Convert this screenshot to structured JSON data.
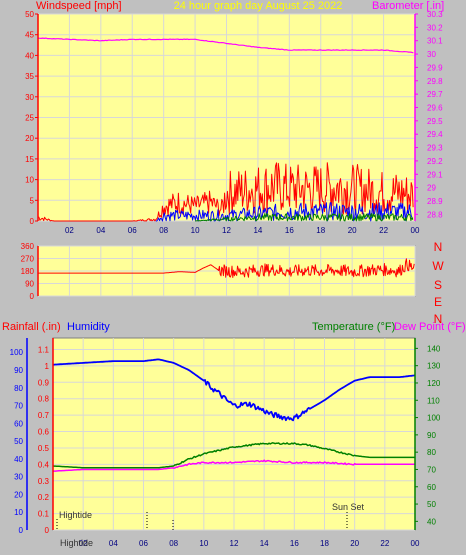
{
  "header": {
    "left_label": "Windspeed [mph]",
    "center_label": "24 hour graph day   August 25 2022",
    "right_label": "Barometer [.in]"
  },
  "lower_header": {
    "rainfall_label": "Rainfall (.in)",
    "humidity_label": "Humidity",
    "temperature_label": "Temperature (°F)",
    "dewpoint_label": "Dew Point (°F)"
  },
  "compass": [
    "N",
    "W",
    "S",
    "E",
    "N"
  ],
  "annotations": {
    "hightide_top": "Hightide",
    "hightide_bottom": "Hightide",
    "sunset": "Sun Set"
  },
  "colors": {
    "plot_bg": "#ffff99",
    "grid": "#d8d8d8",
    "wind": "#ff0000",
    "barometer": "#ff00ff",
    "blue": "#0000ff",
    "green": "#008000",
    "axis_red": "#ff0000",
    "axis_blue": "#0000ff",
    "axis_green": "#008000"
  },
  "chart_data": [
    {
      "type": "line",
      "title": "24 hour graph day   August 25 2022",
      "xlabel": "",
      "ylabel": "Windspeed [mph]",
      "y2label": "Barometer [.in]",
      "x_ticks": [
        "02",
        "04",
        "06",
        "08",
        "10",
        "12",
        "14",
        "16",
        "18",
        "20",
        "22",
        "00"
      ],
      "xlim": [
        0,
        24
      ],
      "y_ticks": [
        "0",
        "5",
        "10",
        "15",
        "20",
        "25",
        "30",
        "35",
        "40",
        "45",
        "50"
      ],
      "ylim": [
        0,
        50
      ],
      "y2_ticks": [
        "28.8",
        "28.9",
        "29",
        "29.1",
        "29.2",
        "29.3",
        "29.4",
        "29.5",
        "29.6",
        "29.7",
        "29.8",
        "29.9",
        "30",
        "30.1",
        "30.2",
        "30.3"
      ],
      "y2lim": [
        28.75,
        30.3
      ],
      "series": [
        {
          "color": "#ff0000",
          "axis": "left",
          "x": [
            0,
            0.5,
            1,
            4,
            6,
            7.5,
            8,
            9,
            10,
            11,
            11.7,
            12,
            13,
            14,
            15,
            16,
            17,
            18,
            19,
            20,
            21,
            22,
            23,
            23.9
          ],
          "values": [
            1,
            0.5,
            0,
            0,
            0,
            0.5,
            4,
            5,
            4,
            5,
            3,
            7,
            7.5,
            8,
            8.5,
            8,
            8,
            8,
            8.5,
            8,
            7.5,
            7,
            7,
            6.5
          ]
        },
        {
          "color": "#0000ff",
          "axis": "left",
          "x": [
            7.5,
            8,
            10,
            12,
            14,
            16,
            18,
            20,
            22,
            23.9
          ],
          "values": [
            0,
            1.5,
            1.5,
            1.5,
            2,
            2.5,
            2.5,
            2.5,
            2.5,
            2.5
          ]
        },
        {
          "color": "#008000",
          "axis": "left",
          "x": [
            10,
            12,
            14,
            16,
            18,
            20,
            22,
            23.9
          ],
          "values": [
            0,
            0.5,
            1,
            1,
            1,
            1,
            1,
            1
          ]
        },
        {
          "color": "#ff00ff",
          "axis": "right",
          "x": [
            0,
            2,
            4,
            6,
            8,
            10,
            12,
            14,
            16,
            18,
            20,
            22,
            23,
            24
          ],
          "values": [
            30.12,
            30.11,
            30.1,
            30.11,
            30.11,
            30.11,
            30.08,
            30.05,
            30.03,
            30.03,
            30.03,
            30.03,
            30.02,
            30.01
          ]
        }
      ]
    },
    {
      "type": "line",
      "title": "",
      "ylabel": "",
      "y2label": "",
      "x_ticks": [],
      "xlim": [
        0,
        24
      ],
      "y_ticks": [
        "0",
        "90",
        "180",
        "270",
        "360"
      ],
      "ylim": [
        0,
        360
      ],
      "series": [
        {
          "color": "#ff0000",
          "x": [
            0,
            2,
            4,
            6,
            8,
            9,
            10,
            10.5,
            11,
            11.5,
            12,
            13,
            14,
            15,
            16,
            17,
            18,
            19,
            20,
            21,
            22,
            23,
            23.5,
            24
          ],
          "values": [
            165,
            165,
            165,
            165,
            165,
            175,
            170,
            200,
            225,
            185,
            180,
            175,
            185,
            190,
            175,
            185,
            180,
            185,
            175,
            185,
            190,
            180,
            230,
            185
          ]
        }
      ]
    },
    {
      "type": "line",
      "title": "",
      "x_ticks": [
        "02",
        "04",
        "06",
        "08",
        "10",
        "12",
        "14",
        "16",
        "18",
        "20",
        "22",
        "00"
      ],
      "xlim": [
        0,
        24
      ],
      "y_ticks_rain": [
        "0",
        "0.1",
        "0.2",
        "0.3",
        "0.4",
        "0.5",
        "0.6",
        "0.7",
        "0.8",
        "0.9",
        "1",
        "1.1"
      ],
      "y_ticks_humidity": [
        "0",
        "10",
        "20",
        "30",
        "40",
        "50",
        "60",
        "70",
        "80",
        "90",
        "100"
      ],
      "humidity_lim": [
        0,
        108
      ],
      "y_ticks_temp": [
        "40",
        "50",
        "60",
        "70",
        "80",
        "90",
        "100",
        "110",
        "120",
        "130",
        "140"
      ],
      "temp_lim": [
        35,
        146
      ],
      "series": [
        {
          "name": "Humidity",
          "color": "#0000ff",
          "x": [
            0,
            2,
            4,
            6,
            7,
            8,
            9,
            10,
            10.5,
            11,
            11.5,
            12,
            13,
            14,
            14.5,
            15,
            15.5,
            16,
            17,
            18,
            19,
            20,
            21,
            22,
            23,
            24
          ],
          "values": [
            93,
            94,
            95,
            95,
            96,
            94,
            90,
            84,
            80,
            77,
            73,
            70,
            71,
            67,
            65,
            64,
            63,
            63,
            68,
            73,
            79,
            84,
            86,
            86,
            86,
            87
          ]
        },
        {
          "name": "Temperature",
          "color": "#008000",
          "x": [
            0,
            2,
            4,
            6,
            7,
            8,
            9,
            10,
            11,
            12,
            13,
            14,
            15,
            16,
            17,
            18,
            19,
            20,
            21,
            22,
            23,
            24
          ],
          "values": [
            72,
            71,
            71,
            71,
            71,
            72,
            76,
            79,
            81,
            83,
            84,
            85,
            85,
            85,
            84,
            82,
            80,
            78,
            77,
            77,
            77,
            77
          ]
        },
        {
          "name": "Dew Point",
          "color": "#ff00ff",
          "x": [
            0,
            2,
            4,
            6,
            7,
            8,
            9,
            10,
            12,
            14,
            16,
            18,
            20,
            22,
            24
          ],
          "values": [
            69,
            70,
            70,
            70,
            70,
            71,
            73,
            74,
            74,
            75,
            74,
            74,
            73,
            73,
            73
          ]
        }
      ]
    }
  ]
}
